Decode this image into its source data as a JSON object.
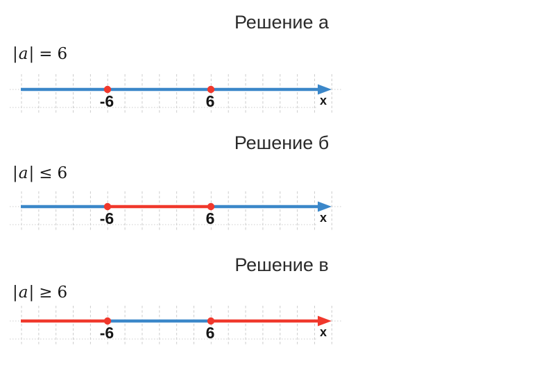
{
  "colors": {
    "blue": "#3b87c9",
    "red": "#f0382c",
    "grid": "#cccccc",
    "title_text": "#2b2b2b",
    "label_text": "#151515"
  },
  "sections": [
    {
      "id": "a",
      "title": "Решение а",
      "formula": {
        "open_bar": "|",
        "variable": "a",
        "close_bar": "|",
        "operator": "=",
        "value": "6"
      },
      "number_line": {
        "axis_label": "x",
        "tick_labels": [
          {
            "position": "minus6",
            "text": "-6"
          },
          {
            "position": "plus6",
            "text": "6"
          }
        ],
        "points": [
          {
            "position": "minus6",
            "value": -6,
            "color": "red"
          },
          {
            "position": "plus6",
            "value": 6,
            "color": "red"
          }
        ],
        "segments": [
          {
            "from": "start",
            "to": "minus6",
            "color": "blue"
          },
          {
            "from": "minus6",
            "to": "plus6",
            "color": "blue"
          },
          {
            "from": "plus6",
            "to": "arrow",
            "color": "blue"
          }
        ],
        "arrow_color": "blue"
      }
    },
    {
      "id": "b",
      "title": "Решение б",
      "formula": {
        "open_bar": "|",
        "variable": "a",
        "close_bar": "|",
        "operator": "≤",
        "value": "6"
      },
      "number_line": {
        "axis_label": "x",
        "tick_labels": [
          {
            "position": "minus6",
            "text": "-6"
          },
          {
            "position": "plus6",
            "text": "6"
          }
        ],
        "points": [
          {
            "position": "minus6",
            "value": -6,
            "color": "red"
          },
          {
            "position": "plus6",
            "value": 6,
            "color": "red"
          }
        ],
        "segments": [
          {
            "from": "start",
            "to": "minus6",
            "color": "blue"
          },
          {
            "from": "minus6",
            "to": "plus6",
            "color": "red"
          },
          {
            "from": "plus6",
            "to": "arrow",
            "color": "blue"
          }
        ],
        "arrow_color": "blue"
      }
    },
    {
      "id": "v",
      "title": "Решение в",
      "formula": {
        "open_bar": "|",
        "variable": "a",
        "close_bar": "|",
        "operator": "≥",
        "value": "6"
      },
      "number_line": {
        "axis_label": "x",
        "tick_labels": [
          {
            "position": "minus6",
            "text": "-6"
          },
          {
            "position": "plus6",
            "text": "6"
          }
        ],
        "points": [
          {
            "position": "minus6",
            "value": -6,
            "color": "red"
          },
          {
            "position": "plus6",
            "value": 6,
            "color": "red"
          }
        ],
        "segments": [
          {
            "from": "start",
            "to": "minus6",
            "color": "red"
          },
          {
            "from": "minus6",
            "to": "plus6",
            "color": "blue"
          },
          {
            "from": "plus6",
            "to": "arrow",
            "color": "red"
          }
        ],
        "arrow_color": "red"
      }
    }
  ]
}
